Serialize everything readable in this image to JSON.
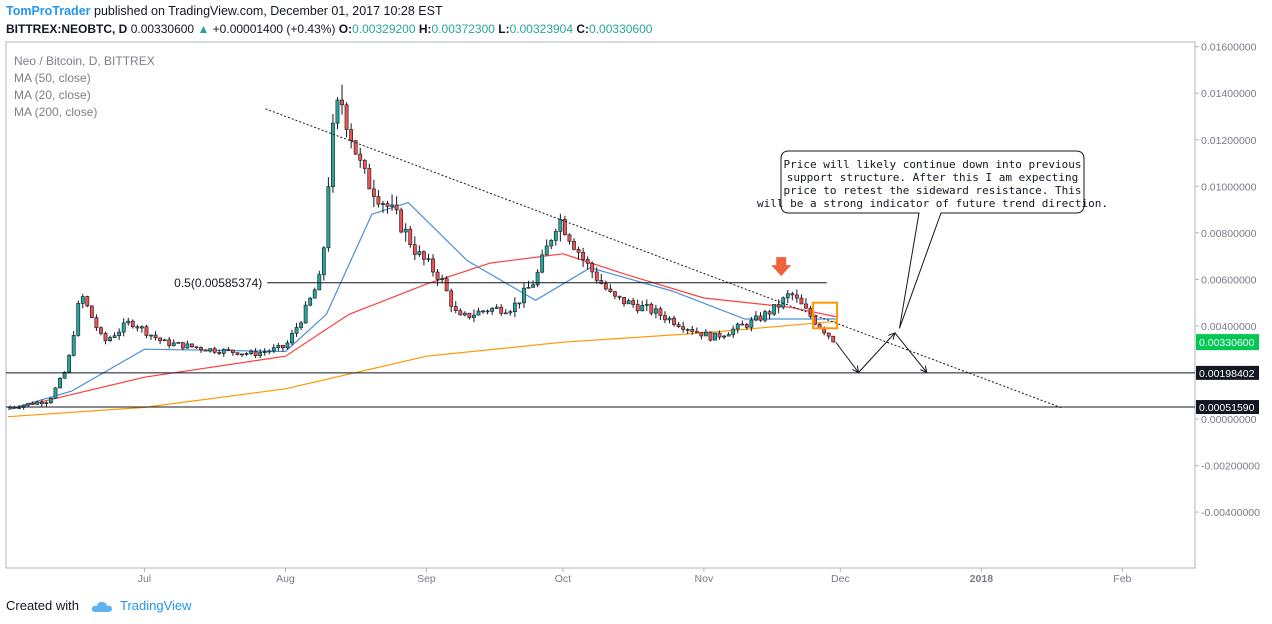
{
  "header": {
    "author": "TomProTrader",
    "published": "published on TradingView.com, December 01, 2017 10:28 EST",
    "symbol": "BITTREX:NEOBTC, D",
    "last": "0.00330600",
    "arrow": "▲",
    "change": "+0.00001400 (+0.43%)",
    "o_label": "O:",
    "o_val": "0.00329200",
    "h_label": "H:",
    "h_val": "0.00372300",
    "l_label": "L:",
    "l_val": "0.00323904",
    "c_label": "C:",
    "c_val": "0.00330600"
  },
  "legend": {
    "title": "Neo / Bitcoin, D, BITTREX",
    "ma1": "MA (50, close)",
    "ma2": "MA (20, close)",
    "ma3": "MA (200, close)"
  },
  "footer": {
    "created_with": "Created with",
    "brand": "TradingView"
  },
  "colors": {
    "up": "#26a69a",
    "down": "#ef5350",
    "candle": "#131722",
    "ma50": "#ff3d3d",
    "ma20": "#4a90d9",
    "ma200": "#ff9800",
    "accent": "#2196f3",
    "price_badge": "#00c853"
  },
  "chart_data": {
    "type": "candlestick",
    "x_ticks": [
      "Jul",
      "Aug",
      "Sep",
      "Oct",
      "Nov",
      "Dec",
      "2018",
      "Feb"
    ],
    "y_ticks": [
      "0.01600000",
      "0.01400000",
      "0.01200000",
      "0.01000000",
      "0.00800000",
      "0.00600000",
      "0.00400000",
      "0.00000000",
      "-0.00200000",
      "-0.00400000"
    ],
    "ylim": [
      -0.0064,
      0.0162
    ],
    "price_labels": [
      {
        "text": "0.00330600",
        "value": 0.003306,
        "style": "current"
      },
      {
        "text": "0.00198402",
        "value": 0.00198402,
        "style": "line"
      },
      {
        "text": "0.00051590",
        "value": 0.0005159,
        "style": "line"
      }
    ],
    "fib_label": "0.5(0.00585374)",
    "fib_value": 0.00585374,
    "annotation": "Price will likely continue down into previous support structure. After this I am expecting price to retest the sideward resistance. This will be a strong indicator of future trend direction.",
    "annotation_lines": [
      "Price will likely continue down into previous",
      "support structure. After this I am expecting",
      "price to retest the sideward resistance. This",
      "will be a strong indicator of future trend direction."
    ],
    "price_path": [
      [
        "2017-06-01",
        0.0005
      ],
      [
        "2017-06-10",
        0.0008
      ],
      [
        "2017-06-14",
        0.0022
      ],
      [
        "2017-06-17",
        0.0054
      ],
      [
        "2017-06-22",
        0.0033
      ],
      [
        "2017-06-28",
        0.0042
      ],
      [
        "2017-07-05",
        0.0033
      ],
      [
        "2017-07-15",
        0.003
      ],
      [
        "2017-07-25",
        0.0028
      ],
      [
        "2017-08-01",
        0.0031
      ],
      [
        "2017-08-05",
        0.0045
      ],
      [
        "2017-08-09",
        0.0062
      ],
      [
        "2017-08-11",
        0.0118
      ],
      [
        "2017-08-13",
        0.0139
      ],
      [
        "2017-08-18",
        0.0105
      ],
      [
        "2017-08-26",
        0.0085
      ],
      [
        "2017-08-30",
        0.0071
      ],
      [
        "2017-09-04",
        0.0061
      ],
      [
        "2017-09-08",
        0.0043
      ],
      [
        "2017-09-14",
        0.0047
      ],
      [
        "2017-09-20",
        0.0048
      ],
      [
        "2017-09-25",
        0.006
      ],
      [
        "2017-09-30",
        0.0087
      ],
      [
        "2017-10-06",
        0.0067
      ],
      [
        "2017-10-12",
        0.0052
      ],
      [
        "2017-10-20",
        0.0047
      ],
      [
        "2017-10-30",
        0.0038
      ],
      [
        "2017-11-03",
        0.0035
      ],
      [
        "2017-11-12",
        0.0042
      ],
      [
        "2017-11-17",
        0.0048
      ],
      [
        "2017-11-20",
        0.0054
      ],
      [
        "2017-11-25",
        0.0043
      ],
      [
        "2017-11-30",
        0.0033
      ]
    ],
    "series": [
      {
        "name": "MA (50, close)",
        "color": "#ff3d3d",
        "points": [
          [
            "2017-06-01",
            0.0004
          ],
          [
            "2017-07-01",
            0.0018
          ],
          [
            "2017-08-01",
            0.0027
          ],
          [
            "2017-08-15",
            0.0045
          ],
          [
            "2017-09-01",
            0.0058
          ],
          [
            "2017-09-15",
            0.0067
          ],
          [
            "2017-10-01",
            0.0071
          ],
          [
            "2017-10-15",
            0.0062
          ],
          [
            "2017-11-01",
            0.0052
          ],
          [
            "2017-11-20",
            0.0048
          ],
          [
            "2017-11-30",
            0.0044
          ]
        ]
      },
      {
        "name": "MA (20, close)",
        "color": "#4a90d9",
        "points": [
          [
            "2017-06-01",
            0.0004
          ],
          [
            "2017-06-15",
            0.0012
          ],
          [
            "2017-07-01",
            0.003
          ],
          [
            "2017-08-01",
            0.0029
          ],
          [
            "2017-08-10",
            0.0045
          ],
          [
            "2017-08-20",
            0.0088
          ],
          [
            "2017-08-28",
            0.0093
          ],
          [
            "2017-09-10",
            0.0068
          ],
          [
            "2017-09-25",
            0.0051
          ],
          [
            "2017-10-07",
            0.0065
          ],
          [
            "2017-10-25",
            0.0055
          ],
          [
            "2017-11-10",
            0.0043
          ],
          [
            "2017-11-30",
            0.0043
          ]
        ]
      },
      {
        "name": "MA (200, close)",
        "color": "#ff9800",
        "points": [
          [
            "2017-06-01",
            0.0001
          ],
          [
            "2017-07-01",
            0.0005
          ],
          [
            "2017-08-01",
            0.0013
          ],
          [
            "2017-09-01",
            0.0027
          ],
          [
            "2017-10-01",
            0.0033
          ],
          [
            "2017-11-01",
            0.0037
          ],
          [
            "2017-11-30",
            0.0042
          ]
        ]
      }
    ],
    "trendline": [
      [
        "2017-08-01",
        0.0132
      ],
      [
        "2018-02-01",
        0.0009
      ]
    ],
    "projection": [
      [
        "2017-11-30",
        0.0033
      ],
      [
        "2017-12-05",
        0.002
      ],
      [
        "2017-12-13",
        0.0037
      ],
      [
        "2017-12-20",
        0.002
      ]
    ],
    "grid": false
  }
}
